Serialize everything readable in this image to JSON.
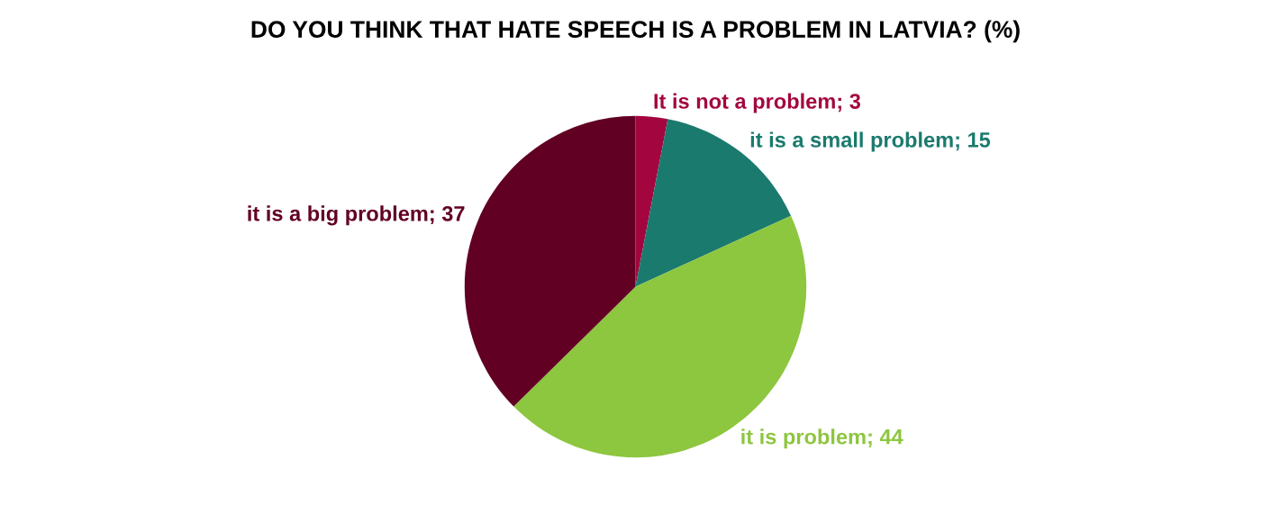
{
  "chart_data": {
    "type": "pie",
    "title": "DO YOU THINK THAT HATE SPEECH IS A PROBLEM IN LATVIA? (%)",
    "categories": [
      "It is not a problem",
      "it is a small problem",
      "it is problem",
      "it is a big problem"
    ],
    "values": [
      3,
      15,
      44,
      37
    ],
    "value_labels": [
      "; 3",
      "; 15",
      "; 44",
      "; 37"
    ],
    "colors": [
      "#a3063f",
      "#1b7a6e",
      "#8dc63f",
      "#620024"
    ]
  }
}
